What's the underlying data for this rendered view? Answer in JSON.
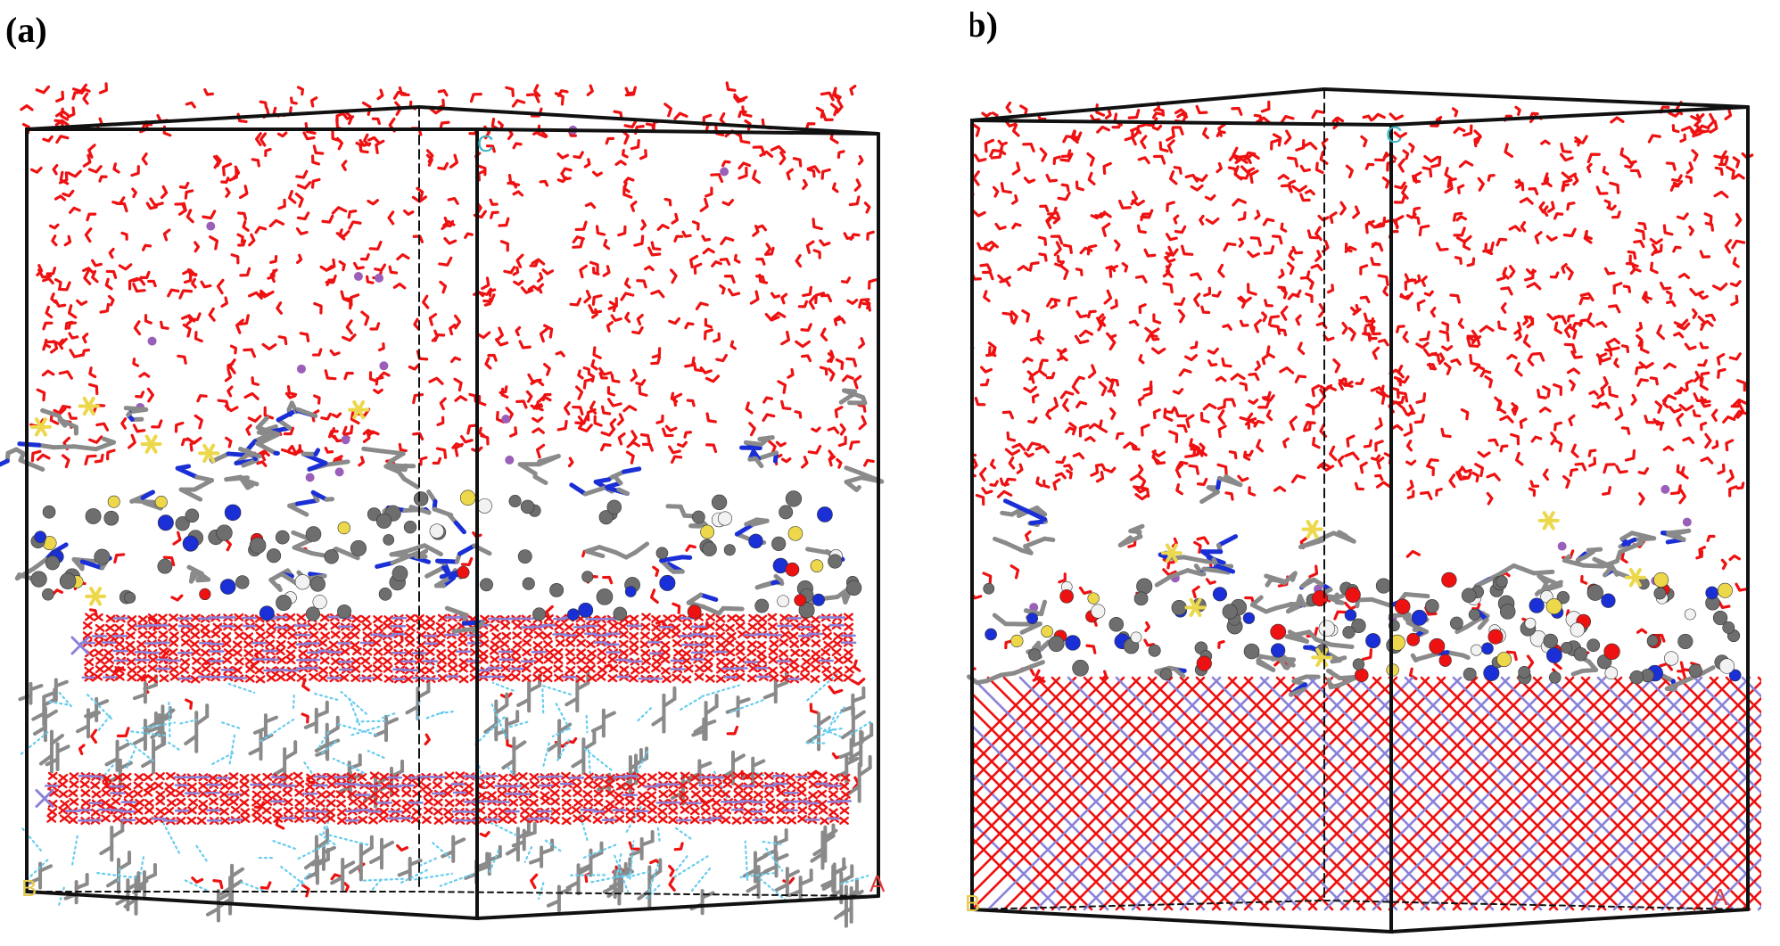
{
  "figure": {
    "panels": [
      {
        "label": "(a)",
        "axis_labels": {
          "a": "A",
          "b": "B",
          "c": "C"
        },
        "layers": [
          "water",
          "adsorbed-inhibitor",
          "crystal-slab",
          "organic-interlayer",
          "crystal-slab",
          "organic-interlayer"
        ]
      },
      {
        "label": "(b)",
        "axis_labels": {
          "a": "A",
          "b": "B",
          "c": "C"
        },
        "layers": [
          "water",
          "adsorbed-inhibitor",
          "crystal-lattice"
        ]
      }
    ],
    "colors": {
      "oxygen": "#ee1111",
      "metal": "#8a82d8",
      "carbon": "#8a8a8a",
      "carbon_ball": "#6e6e6e",
      "nitrogen": "#1a2fd6",
      "sulfur": "#ecd84a",
      "hydrogen": "#f2f2f2",
      "ion": "#9a5fb8",
      "hbond": "#66ccee",
      "box": "#111111",
      "axis_a": "#e23b3b",
      "axis_b": "#e6c94a",
      "axis_c": "#3fb7c7"
    }
  }
}
